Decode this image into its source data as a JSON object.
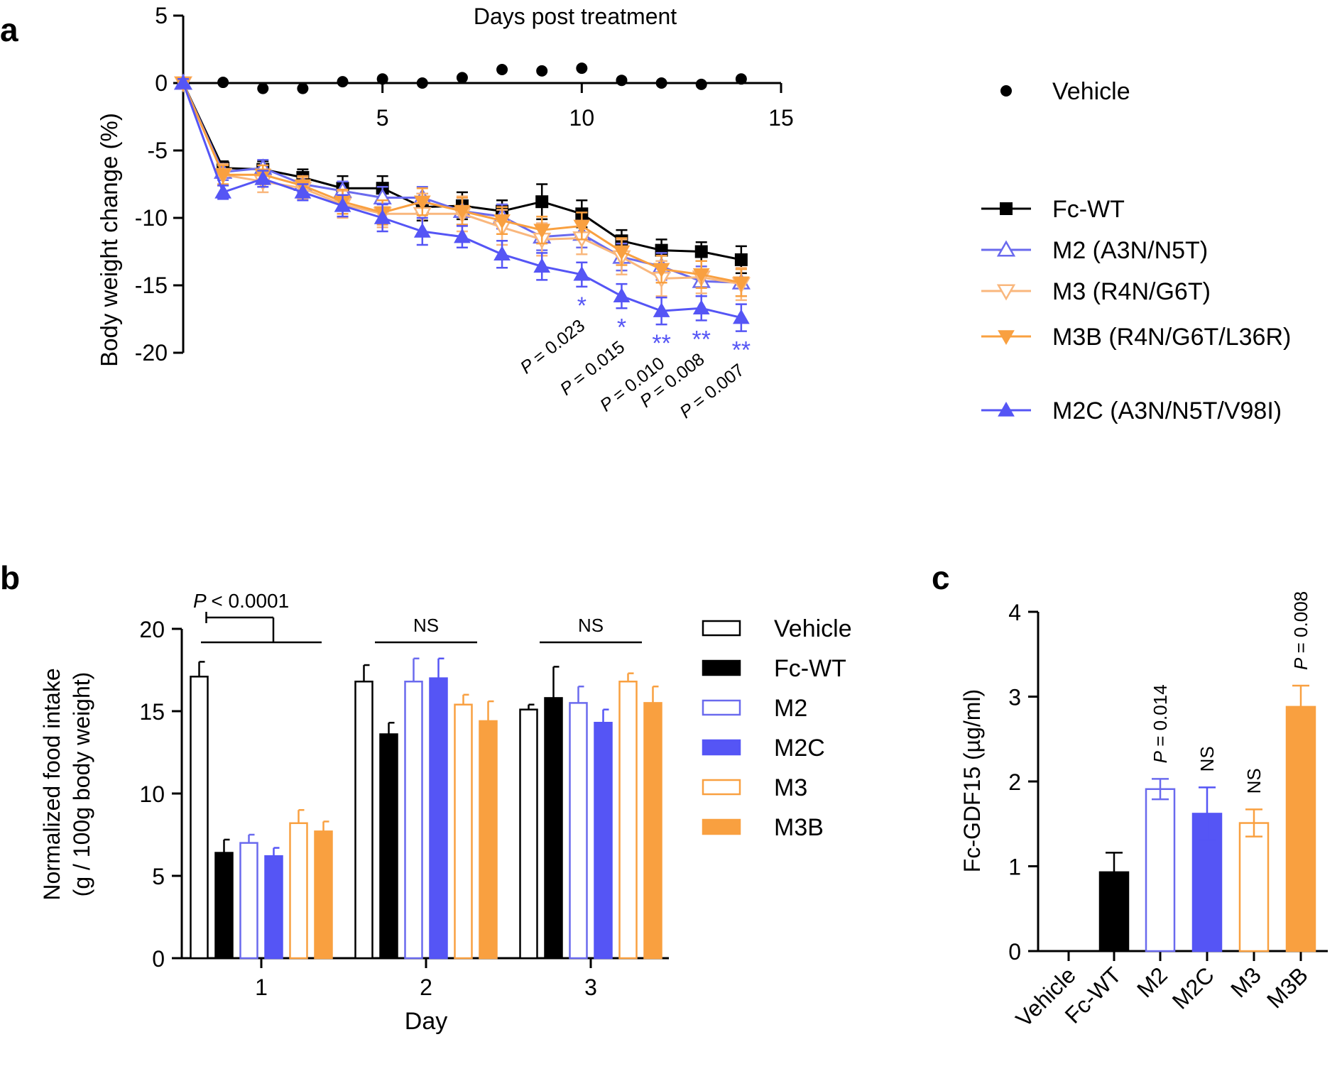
{
  "panel_labels": {
    "a": "a",
    "b": "b",
    "c": "c"
  },
  "colors": {
    "vehicle_line": "#9e9e9e",
    "fc_wt": "#000000",
    "m2": "#6a6aee",
    "m2c": "#5555f5",
    "m3": "#f9b77d",
    "m3b": "#f9a040"
  },
  "p_prefix": "P",
  "chart_data": [
    {
      "id": "a",
      "type": "line",
      "title": "Days post treatment",
      "xlabel": "Days post treatment",
      "ylabel": "Body weight change (%)",
      "xlim": [
        0,
        15
      ],
      "ylim": [
        -20,
        5
      ],
      "xticks": [
        "5",
        "10",
        "15"
      ],
      "yticks": [
        "5",
        "0",
        "-5",
        "-10",
        "-15",
        "-20"
      ],
      "x": [
        0,
        1,
        2,
        3,
        4,
        5,
        6,
        7,
        8,
        9,
        10,
        11,
        12,
        13,
        14
      ],
      "series": [
        {
          "name": "Vehicle",
          "key": "vehicle",
          "marker": "circle",
          "values": [
            0,
            0.05,
            -0.4,
            -0.4,
            0.1,
            0.3,
            0,
            0.4,
            1.0,
            0.9,
            1.1,
            0.2,
            0,
            -0.1,
            0.3
          ],
          "errors": [
            0.3,
            0.1,
            0.2,
            0.4,
            0.5,
            0.6,
            0.5,
            0.5,
            0.6,
            0.6,
            0.6,
            0.4,
            0.5,
            0.4,
            0.5
          ]
        },
        {
          "name": "Fc-WT",
          "key": "fc_wt",
          "marker": "square",
          "values": [
            0,
            -6.3,
            -6.4,
            -7.0,
            -7.8,
            -7.8,
            -9.2,
            -9.1,
            -9.5,
            -8.8,
            -9.7,
            -11.7,
            -12.4,
            -12.5,
            -13.1
          ],
          "errors": [
            0.3,
            0.5,
            0.6,
            0.6,
            0.9,
            0.9,
            1.0,
            1.0,
            0.8,
            1.3,
            1.0,
            0.8,
            0.8,
            0.7,
            1.0
          ]
        },
        {
          "name": "M2 (A3N/N5T)",
          "key": "m2",
          "marker": "triangle-up-open",
          "values": [
            0,
            -6.6,
            -6.3,
            -7.5,
            -8.0,
            -8.5,
            -8.5,
            -9.5,
            -9.9,
            -11.4,
            -11.2,
            -12.9,
            -13.6,
            -14.7,
            -14.8
          ],
          "errors": [
            0.3,
            0.6,
            0.6,
            0.6,
            0.7,
            0.8,
            0.8,
            1.0,
            0.9,
            1.0,
            1.0,
            1.0,
            1.0,
            1.1,
            1.0
          ]
        },
        {
          "name": "M3 (R4N/G6T)",
          "key": "m3",
          "marker": "triangle-down-open",
          "values": [
            0,
            -6.8,
            -7.3,
            -7.8,
            -9.0,
            -9.7,
            -9.7,
            -9.7,
            -10.7,
            -11.6,
            -11.5,
            -12.9,
            -14.5,
            -14.4,
            -14.9
          ],
          "errors": [
            0.4,
            0.8,
            0.8,
            0.8,
            1.0,
            1.0,
            1.5,
            1.3,
            1.3,
            1.2,
            1.2,
            1.3,
            1.3,
            1.2,
            1.2
          ]
        },
        {
          "name": "M3B (R4N/G6T/L36R)",
          "key": "m3b",
          "marker": "triangle-down",
          "values": [
            0,
            -6.8,
            -6.8,
            -7.6,
            -8.8,
            -9.6,
            -8.8,
            -9.5,
            -10.2,
            -10.9,
            -10.6,
            -12.5,
            -13.8,
            -14.2,
            -14.8
          ],
          "errors": [
            0.4,
            0.7,
            0.7,
            0.7,
            0.9,
            0.9,
            1.0,
            1.0,
            1.0,
            1.0,
            1.0,
            1.0,
            1.0,
            1.0,
            1.0
          ]
        },
        {
          "name": "M2C (A3N/N5T/V98I)",
          "key": "m2c",
          "marker": "triangle-up",
          "values": [
            0,
            -8.1,
            -7.1,
            -8.1,
            -9.1,
            -10.0,
            -11.0,
            -11.4,
            -12.7,
            -13.6,
            -14.2,
            -15.8,
            -16.9,
            -16.7,
            -17.4
          ],
          "errors": [
            0.3,
            0.5,
            0.6,
            0.6,
            0.8,
            1.0,
            1.0,
            0.8,
            1.0,
            1.0,
            0.9,
            0.9,
            1.0,
            0.9,
            1.0
          ]
        }
      ],
      "annotations": [
        {
          "day": 10,
          "stars": "*",
          "p": "= 0.023"
        },
        {
          "day": 11,
          "stars": "*",
          "p": "= 0.015"
        },
        {
          "day": 12,
          "stars": "**",
          "p": "= 0.010"
        },
        {
          "day": 13,
          "stars": "**",
          "p": "= 0.008"
        },
        {
          "day": 14,
          "stars": "**",
          "p": "= 0.007"
        }
      ],
      "legend_position": "right"
    },
    {
      "id": "b",
      "type": "bar",
      "xlabel": "Day",
      "ylabel": [
        "Normalized food intake",
        "(g / 100g body weight)"
      ],
      "ylim": [
        0,
        20
      ],
      "yticks": [
        "0",
        "5",
        "10",
        "15",
        "20"
      ],
      "categories": [
        "1",
        "2",
        "3"
      ],
      "series": [
        {
          "name": "Vehicle",
          "key": "vehicle_bar",
          "fill": false,
          "values": [
            17.1,
            16.8,
            15.1
          ],
          "errors": [
            0.9,
            1.0,
            0.3
          ]
        },
        {
          "name": "Fc-WT",
          "key": "fc_wt",
          "fill": true,
          "values": [
            6.4,
            13.6,
            15.8
          ],
          "errors": [
            0.8,
            0.7,
            1.9
          ]
        },
        {
          "name": "M2",
          "key": "m2",
          "fill": false,
          "values": [
            7.0,
            16.8,
            15.5
          ],
          "errors": [
            0.5,
            1.4,
            1.0
          ]
        },
        {
          "name": "M2C",
          "key": "m2c",
          "fill": true,
          "values": [
            6.2,
            17.0,
            14.3
          ],
          "errors": [
            0.5,
            1.2,
            0.8
          ]
        },
        {
          "name": "M3",
          "key": "m3b",
          "fill": false,
          "values": [
            8.2,
            15.4,
            16.8
          ],
          "errors": [
            0.8,
            0.6,
            0.5
          ]
        },
        {
          "name": "M3B",
          "key": "m3b",
          "fill": true,
          "values": [
            7.7,
            14.4,
            15.5
          ],
          "errors": [
            0.6,
            1.2,
            1.0
          ]
        }
      ],
      "annotations": [
        {
          "day": "1",
          "p_text": "< 0.0001"
        },
        {
          "day": "2",
          "text": "NS"
        },
        {
          "day": "3",
          "text": "NS"
        }
      ],
      "legend_position": "right"
    },
    {
      "id": "c",
      "type": "bar",
      "ylabel": "Fc-GDF15 (µg/ml)",
      "ylim": [
        0,
        4
      ],
      "yticks": [
        "0",
        "1",
        "2",
        "3",
        "4"
      ],
      "categories": [
        "Vehicle",
        "Fc-WT",
        "M2",
        "M2C",
        "M3",
        "M3B"
      ],
      "keys": [
        "vehicle_bar",
        "fc_wt",
        "m2",
        "m2c",
        "m3b",
        "m3b"
      ],
      "fills": [
        false,
        true,
        false,
        true,
        false,
        true
      ],
      "values": [
        0,
        0.93,
        1.91,
        1.62,
        1.51,
        2.88
      ],
      "errors": [
        0,
        0.23,
        0.12,
        0.31,
        0.16,
        0.25
      ],
      "annotations": [
        {
          "category": "M2",
          "p_text": "= 0.014"
        },
        {
          "category": "M2C",
          "text": "NS"
        },
        {
          "category": "M3",
          "text": "NS"
        },
        {
          "category": "M3B",
          "p_text": "= 0.008"
        }
      ]
    }
  ]
}
